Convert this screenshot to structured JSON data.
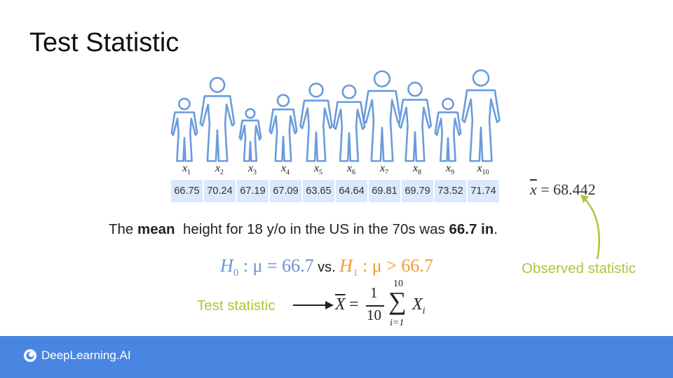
{
  "title": "Test Statistic",
  "sample": {
    "labels": [
      {
        "var": "x",
        "sub": "1"
      },
      {
        "var": "x",
        "sub": "2"
      },
      {
        "var": "x",
        "sub": "3"
      },
      {
        "var": "x",
        "sub": "4"
      },
      {
        "var": "x",
        "sub": "5"
      },
      {
        "var": "x",
        "sub": "6"
      },
      {
        "var": "x",
        "sub": "7"
      },
      {
        "var": "x",
        "sub": "8"
      },
      {
        "var": "x",
        "sub": "9"
      },
      {
        "var": "x",
        "sub": "10"
      }
    ],
    "values": [
      "66.75",
      "70.24",
      "67.19",
      "67.09",
      "63.65",
      "64.64",
      "69.81",
      "69.79",
      "73.52",
      "71.74"
    ]
  },
  "observed": {
    "symbol": "x",
    "equals": "= 68.442",
    "label": "Observed statistic"
  },
  "sentence": {
    "part1": "The ",
    "mean": "mean",
    "part2": "  height for 18 y/o in the US in the 70s was ",
    "value": "66.7 in",
    "end": "."
  },
  "hypotheses": {
    "h0_var": "H",
    "h0_sub": "0",
    "h0_rest": " : μ = 66.7",
    "vs": " vs. ",
    "h1_var": "H",
    "h1_sub": "1",
    "h1_rest": " : μ > 66.7"
  },
  "test_statistic": {
    "label": "Test statistic",
    "lhs": "X",
    "eq": "=",
    "numerator": "1",
    "denominator": "10",
    "sum_upper": "10",
    "sum_sign": "∑",
    "sum_lower": "i=1",
    "term": "X",
    "term_sub": "i"
  },
  "footer": {
    "brand": "DeepLearning.AI"
  },
  "colors": {
    "h0": "#6a93d3",
    "h1": "#ef9d32",
    "annotation": "#a7c83c",
    "footer": "#4a86e1",
    "cell": "#dce8fb",
    "figures": "#6a9bdc"
  }
}
